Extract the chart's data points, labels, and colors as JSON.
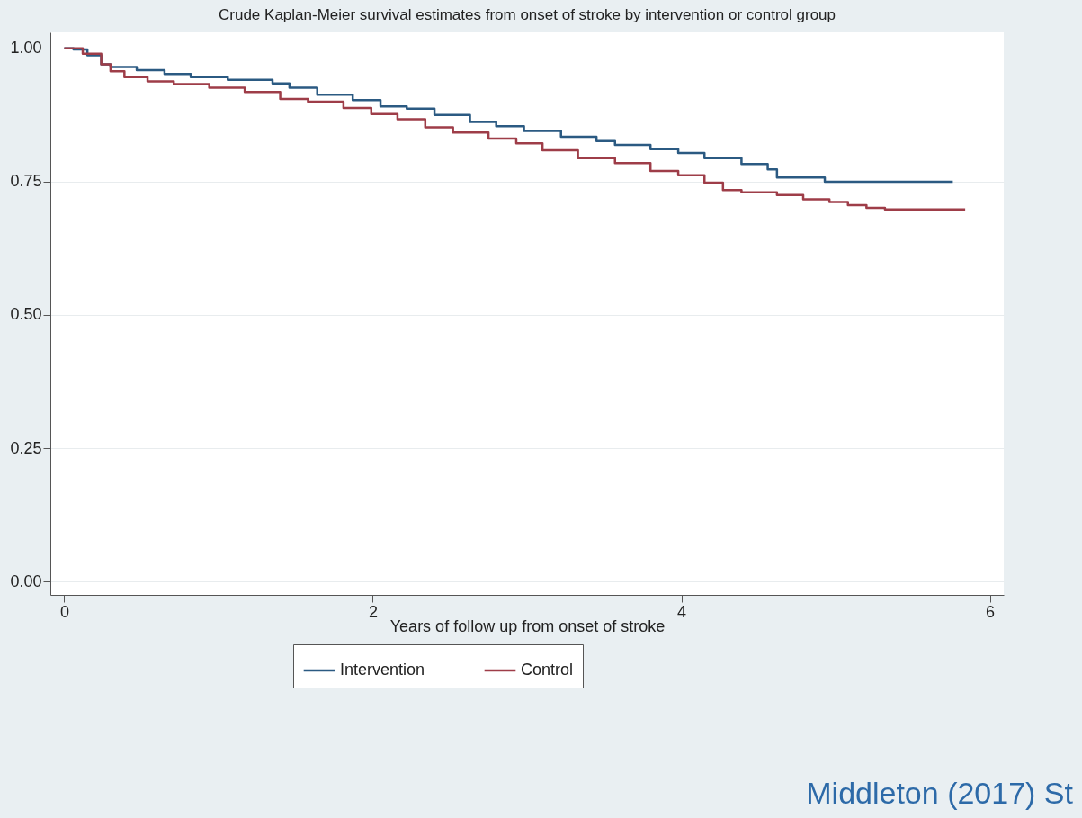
{
  "chart_data": {
    "type": "step",
    "title": "Crude Kaplan-Meier survival estimates from onset of stroke by intervention or control group",
    "xlabel": "Years of follow up from onset of stroke",
    "xlim": [
      -0.09,
      6.09
    ],
    "xticks": [
      0,
      2,
      4,
      6
    ],
    "ylim": [
      -0.025,
      1.03
    ],
    "yticks": [
      {
        "value": 0,
        "label": "0.00"
      },
      {
        "value": 0.25,
        "label": "0.25"
      },
      {
        "value": 0.5,
        "label": "0.50"
      },
      {
        "value": 0.75,
        "label": "0.75"
      },
      {
        "value": 1,
        "label": "1.00"
      }
    ],
    "grid": "y",
    "legend": "bottom",
    "annotations": [
      "Middleton (2017) St"
    ],
    "series": [
      {
        "name": "Intervention",
        "color": "#2b5a82",
        "x": [
          0,
          0.06,
          0.15,
          0.24,
          0.3,
          0.47,
          0.65,
          0.82,
          1.06,
          1.35,
          1.46,
          1.64,
          1.87,
          2.05,
          2.22,
          2.4,
          2.63,
          2.8,
          2.98,
          3.22,
          3.45,
          3.57,
          3.8,
          3.98,
          4.15,
          4.39,
          4.56,
          4.62,
          4.93,
          5.76
        ],
        "values": [
          1,
          0.998,
          0.987,
          0.97,
          0.965,
          0.959,
          0.952,
          0.946,
          0.941,
          0.934,
          0.926,
          0.913,
          0.903,
          0.891,
          0.887,
          0.875,
          0.862,
          0.854,
          0.845,
          0.834,
          0.826,
          0.819,
          0.811,
          0.804,
          0.794,
          0.783,
          0.773,
          0.758,
          0.75,
          0.75
        ]
      },
      {
        "name": "Control",
        "color": "#9e3d48",
        "x": [
          0,
          0.12,
          0.24,
          0.3,
          0.39,
          0.54,
          0.71,
          0.94,
          1.17,
          1.4,
          1.58,
          1.81,
          1.99,
          2.16,
          2.34,
          2.52,
          2.75,
          2.93,
          3.1,
          3.33,
          3.57,
          3.8,
          3.98,
          4.15,
          4.27,
          4.39,
          4.62,
          4.79,
          4.96,
          5.08,
          5.2,
          5.32,
          5.84
        ],
        "values": [
          1,
          0.99,
          0.97,
          0.957,
          0.946,
          0.938,
          0.933,
          0.926,
          0.918,
          0.905,
          0.9,
          0.888,
          0.877,
          0.867,
          0.852,
          0.842,
          0.831,
          0.822,
          0.809,
          0.794,
          0.785,
          0.77,
          0.762,
          0.748,
          0.734,
          0.73,
          0.725,
          0.717,
          0.712,
          0.706,
          0.701,
          0.698,
          0.698
        ]
      }
    ]
  }
}
